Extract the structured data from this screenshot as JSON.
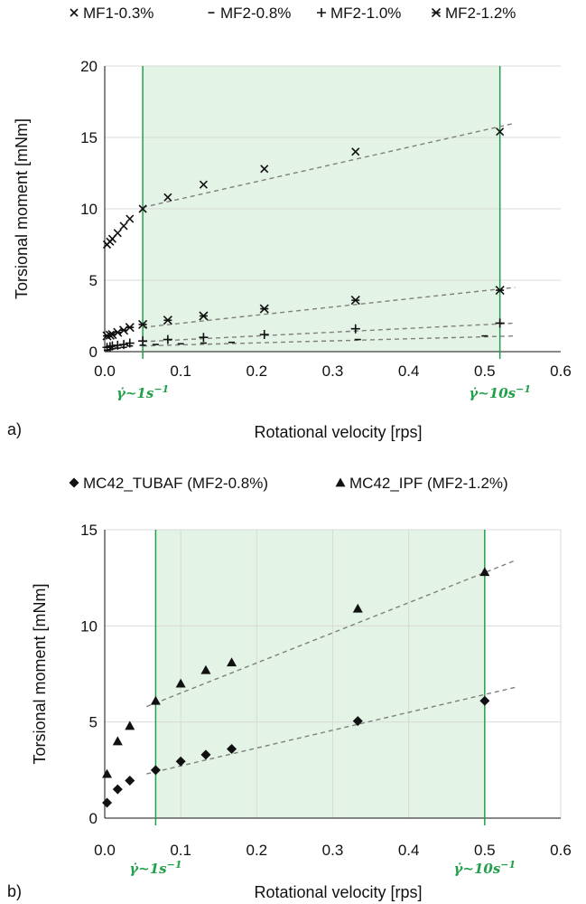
{
  "chart_data": [
    {
      "panel_label": "a)",
      "type": "scatter",
      "xlabel": "Rotational velocity [rps]",
      "ylabel": "Torsional moment [mNm]",
      "xlim": [
        0.0,
        0.6
      ],
      "ylim": [
        0,
        20
      ],
      "x_ticks": [
        "0.0",
        "0.1",
        "0.2",
        "0.3",
        "0.4",
        "0.5",
        "0.6"
      ],
      "y_ticks": [
        "0",
        "5",
        "10",
        "15",
        "20"
      ],
      "grid": "horizontal",
      "legend_position": "top",
      "shaded_region": {
        "x": [
          0.05,
          0.52
        ],
        "color": "#e3f3e6"
      },
      "vertical_lines": [
        {
          "x": 0.05,
          "label_main": "γ̇~1s",
          "label_sup": "−1"
        },
        {
          "x": 0.52,
          "label_main": "γ̇~10s",
          "label_sup": "−1"
        }
      ],
      "series": [
        {
          "name": "MF1-0.3%",
          "marker": "x",
          "points": [
            [
              0.003,
              7.5
            ],
            [
              0.007,
              7.7
            ],
            [
              0.01,
              7.9
            ],
            [
              0.017,
              8.3
            ],
            [
              0.025,
              8.8
            ],
            [
              0.033,
              9.3
            ],
            [
              0.05,
              10.0
            ],
            [
              0.083,
              10.8
            ],
            [
              0.13,
              11.7
            ],
            [
              0.21,
              12.8
            ],
            [
              0.33,
              14.0
            ],
            [
              0.52,
              15.4
            ]
          ],
          "fit": [
            [
              0.05,
              10.1
            ],
            [
              0.54,
              16.0
            ]
          ]
        },
        {
          "name": "MF2-0.8%",
          "marker": "dash",
          "points": [
            [
              0.003,
              0.1
            ],
            [
              0.007,
              0.15
            ],
            [
              0.01,
              0.2
            ],
            [
              0.017,
              0.25
            ],
            [
              0.025,
              0.3
            ],
            [
              0.033,
              0.4
            ],
            [
              0.05,
              0.45
            ],
            [
              0.067,
              0.5
            ],
            [
              0.1,
              0.55
            ],
            [
              0.13,
              0.6
            ],
            [
              0.167,
              0.65
            ],
            [
              0.333,
              0.85
            ],
            [
              0.5,
              1.1
            ]
          ],
          "fit": [
            [
              0.05,
              0.4
            ],
            [
              0.54,
              1.1
            ]
          ]
        },
        {
          "name": "MF2-1.0%",
          "marker": "plus",
          "points": [
            [
              0.003,
              0.3
            ],
            [
              0.007,
              0.35
            ],
            [
              0.01,
              0.4
            ],
            [
              0.017,
              0.45
            ],
            [
              0.025,
              0.5
            ],
            [
              0.033,
              0.6
            ],
            [
              0.05,
              0.75
            ],
            [
              0.083,
              0.85
            ],
            [
              0.13,
              1.0
            ],
            [
              0.21,
              1.2
            ],
            [
              0.33,
              1.6
            ],
            [
              0.52,
              2.0
            ]
          ],
          "fit": [
            [
              0.05,
              0.7
            ],
            [
              0.54,
              2.0
            ]
          ]
        },
        {
          "name": "MF2-1.2%",
          "marker": "star",
          "points": [
            [
              0.003,
              1.1
            ],
            [
              0.007,
              1.15
            ],
            [
              0.01,
              1.2
            ],
            [
              0.017,
              1.35
            ],
            [
              0.025,
              1.5
            ],
            [
              0.033,
              1.7
            ],
            [
              0.05,
              1.9
            ],
            [
              0.083,
              2.2
            ],
            [
              0.13,
              2.5
            ],
            [
              0.21,
              3.0
            ],
            [
              0.33,
              3.6
            ],
            [
              0.52,
              4.3
            ]
          ],
          "fit": [
            [
              0.05,
              1.7
            ],
            [
              0.54,
              4.5
            ]
          ]
        }
      ]
    },
    {
      "panel_label": "b)",
      "type": "scatter",
      "xlabel": "Rotational velocity [rps]",
      "ylabel": "Torsional moment [mNm]",
      "xlim": [
        0.0,
        0.6
      ],
      "ylim": [
        0,
        15
      ],
      "x_ticks": [
        "0.0",
        "0.1",
        "0.2",
        "0.3",
        "0.4",
        "0.5",
        "0.6"
      ],
      "y_ticks": [
        "0",
        "5",
        "10",
        "15"
      ],
      "grid": "both",
      "legend_position": "top",
      "shaded_region": {
        "x": [
          0.067,
          0.5
        ],
        "color": "#e3f3e6"
      },
      "vertical_lines": [
        {
          "x": 0.067,
          "label_main": "γ̇~1s",
          "label_sup": "−1"
        },
        {
          "x": 0.5,
          "label_main": "γ̇~10s",
          "label_sup": "−1"
        }
      ],
      "series": [
        {
          "name": "MC42_TUBAF (MF2-0.8%)",
          "marker": "diamond",
          "points": [
            [
              0.003,
              0.8
            ],
            [
              0.017,
              1.5
            ],
            [
              0.033,
              1.95
            ],
            [
              0.067,
              2.5
            ],
            [
              0.1,
              2.95
            ],
            [
              0.133,
              3.3
            ],
            [
              0.167,
              3.6
            ],
            [
              0.333,
              5.05
            ],
            [
              0.5,
              6.1
            ]
          ],
          "fit": [
            [
              0.055,
              2.3
            ],
            [
              0.54,
              6.8
            ]
          ]
        },
        {
          "name": "MC42_IPF (MF2-1.2%)",
          "marker": "triangle",
          "points": [
            [
              0.003,
              2.3
            ],
            [
              0.017,
              4.0
            ],
            [
              0.033,
              4.8
            ],
            [
              0.067,
              6.1
            ],
            [
              0.1,
              7.0
            ],
            [
              0.133,
              7.7
            ],
            [
              0.167,
              8.1
            ],
            [
              0.333,
              10.9
            ],
            [
              0.5,
              12.8
            ]
          ],
          "fit": [
            [
              0.055,
              5.8
            ],
            [
              0.54,
              13.4
            ]
          ]
        }
      ]
    }
  ]
}
